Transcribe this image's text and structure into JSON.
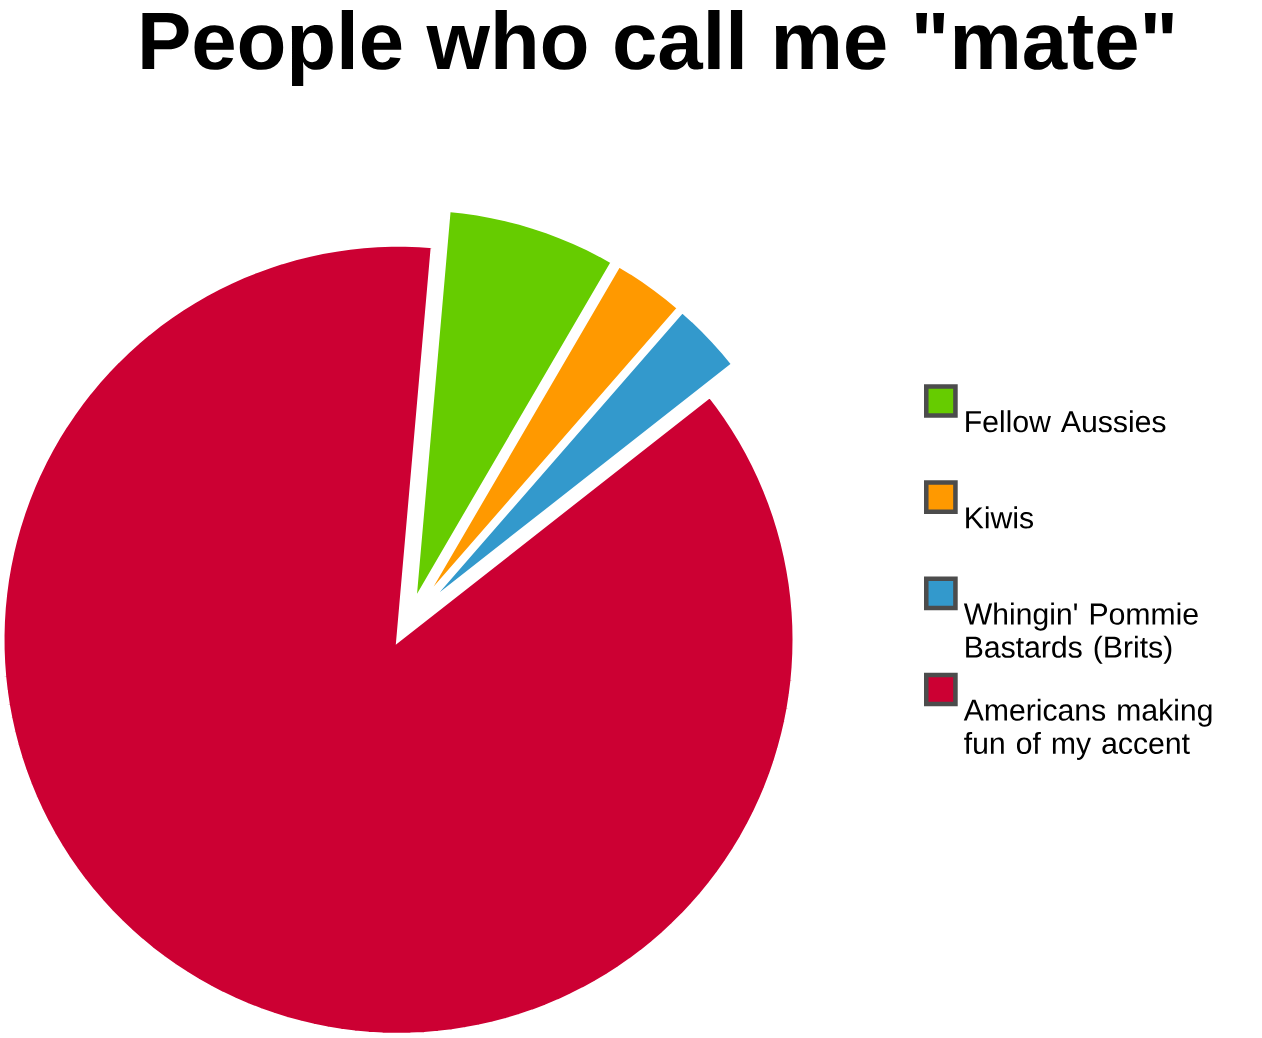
{
  "chart_data": {
    "type": "pie",
    "title": "People who call me \"mate\"",
    "categories": [
      "Fellow Aussies",
      "Kiwis",
      "Whingin' Pommie Bastards (Brits)",
      "Americans making fun of my accent"
    ],
    "values": [
      7,
      3,
      3,
      87
    ],
    "colors": [
      "#66cc00",
      "#ff9900",
      "#3399cc",
      "#cc0033"
    ],
    "legend": "right"
  }
}
